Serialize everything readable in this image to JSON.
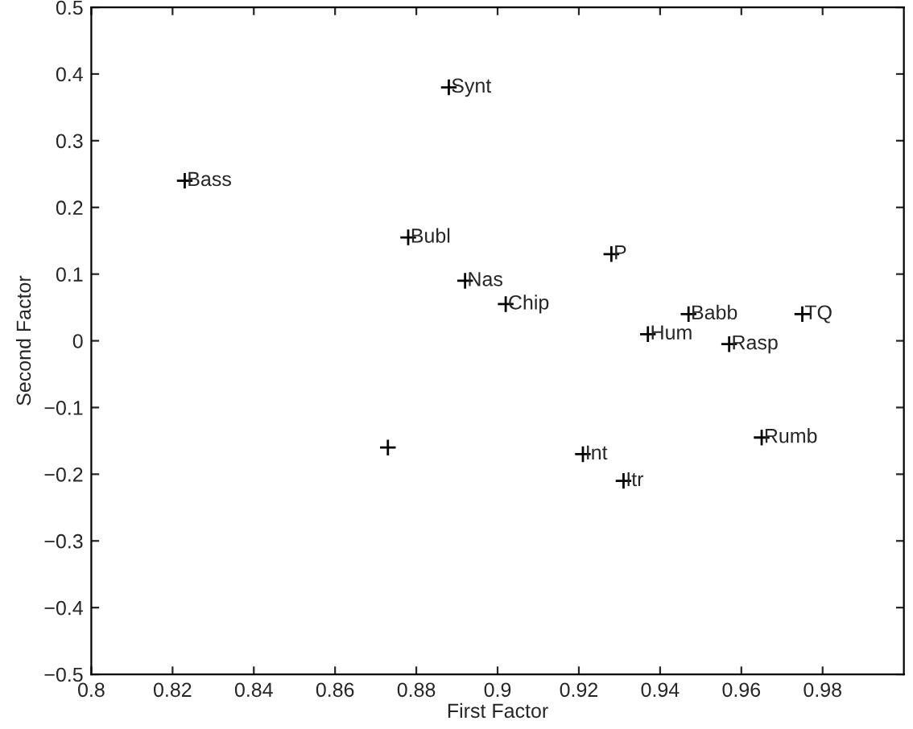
{
  "chart_data": {
    "type": "scatter",
    "xlabel": "First Factor",
    "ylabel": "Second Factor",
    "x": [
      0.823,
      0.888,
      0.878,
      0.892,
      0.902,
      0.928,
      0.937,
      0.947,
      0.957,
      0.975,
      0.965,
      0.921,
      0.931,
      0.873
    ],
    "values": [
      0.24,
      0.38,
      0.155,
      0.09,
      0.055,
      0.13,
      0.01,
      0.04,
      -0.005,
      0.04,
      -0.145,
      -0.17,
      -0.21,
      -0.16
    ],
    "color": "#000000",
    "marker": "cross",
    "grid": false,
    "xlim": [
      0.8,
      1.0
    ],
    "xticks": [
      0.8,
      0.82,
      0.84,
      0.86,
      0.88,
      0.9,
      0.92,
      0.94,
      0.96,
      0.98
    ],
    "ylim": [
      -0.5,
      0.5
    ],
    "yticks": [
      -0.5,
      -0.4,
      -0.3,
      -0.2,
      -0.1,
      0,
      0.1,
      0.2,
      0.3,
      0.4,
      0.5
    ],
    "annotations": [
      {
        "text": "Bass",
        "x": 0.823,
        "y": 0.24
      },
      {
        "text": "Synt",
        "x": 0.888,
        "y": 0.38
      },
      {
        "text": "Bubl",
        "x": 0.878,
        "y": 0.155
      },
      {
        "text": "Nas",
        "x": 0.892,
        "y": 0.09
      },
      {
        "text": "Chip",
        "x": 0.902,
        "y": 0.055
      },
      {
        "text": "P",
        "x": 0.928,
        "y": 0.13
      },
      {
        "text": "Hum",
        "x": 0.937,
        "y": 0.01
      },
      {
        "text": "Babb",
        "x": 0.947,
        "y": 0.04
      },
      {
        "text": "Rasp",
        "x": 0.957,
        "y": -0.005
      },
      {
        "text": "TQ",
        "x": 0.975,
        "y": 0.04
      },
      {
        "text": "Rumb",
        "x": 0.965,
        "y": -0.145
      },
      {
        "text": "Int",
        "x": 0.921,
        "y": -0.17
      },
      {
        "text": "Itr",
        "x": 0.931,
        "y": -0.21
      }
    ]
  }
}
